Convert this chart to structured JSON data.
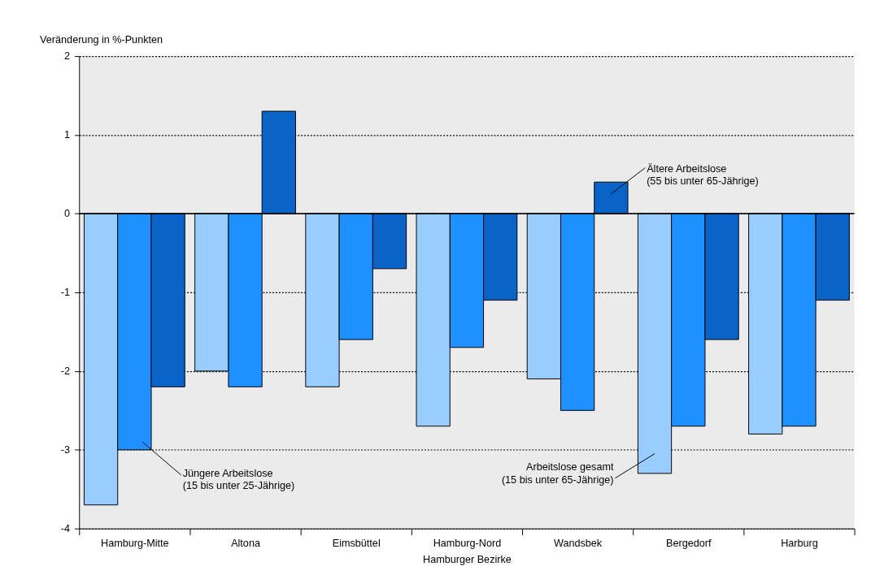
{
  "chart_data": {
    "type": "bar",
    "xlabel": "Hamburger Bezirke",
    "ylabel": "Veränderung in %-Punkten",
    "categories": [
      "Hamburg-Mitte",
      "Altona",
      "Eimsbüttel",
      "Hamburg-Nord",
      "Wandsbek",
      "Bergedorf",
      "Harburg"
    ],
    "series": [
      {
        "name": "Arbeitslose gesamt (15 bis unter 65-Jährige)",
        "color": "#99ccff",
        "values": [
          -3.7,
          -2.0,
          -2.2,
          -2.7,
          -2.1,
          -3.3,
          -2.8
        ]
      },
      {
        "name": "Jüngere Arbeitslose (15 bis unter 25-Jährige)",
        "color": "#1e90ff",
        "values": [
          -3.0,
          -2.2,
          -1.6,
          -1.7,
          -2.5,
          -2.7,
          -2.7
        ]
      },
      {
        "name": "Ältere Arbeitslose (55 bis unter 65-Jährige)",
        "color": "#0a64c8",
        "values": [
          -2.2,
          1.3,
          -0.7,
          -1.1,
          0.4,
          -1.6,
          -1.1
        ]
      }
    ],
    "ylim": [
      -4,
      2
    ],
    "yticks": [
      -4,
      -3,
      -2,
      -1,
      0,
      1,
      2
    ],
    "grid": "y",
    "legend": false,
    "ref_lines": [
      {
        "axis": "y",
        "value": 0
      }
    ]
  }
}
